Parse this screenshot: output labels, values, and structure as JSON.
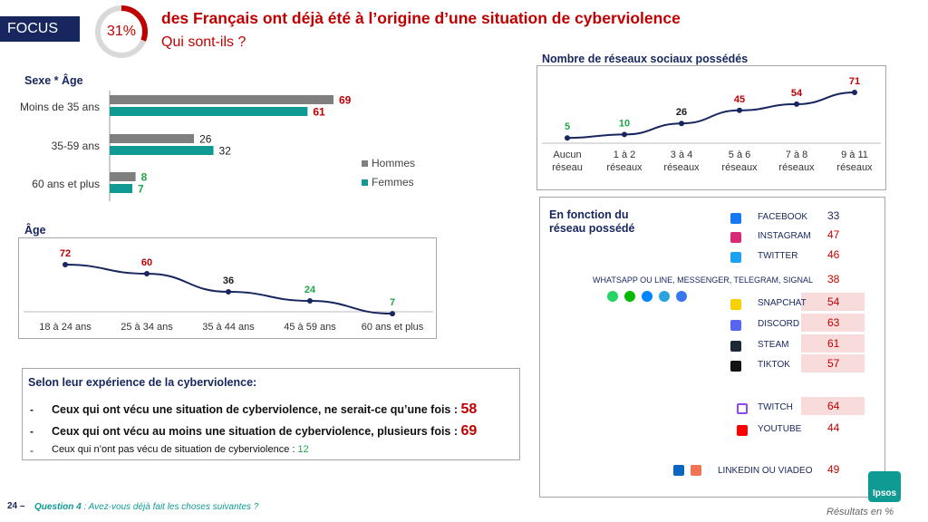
{
  "header": {
    "focus_label": "FOCUS",
    "donut_value": "31%",
    "donut_fraction": 0.31,
    "headline": "des Français ont déjà été à l’origine d’une situation de cyberviolence",
    "subhead": "Qui sont-ils ?"
  },
  "colors": {
    "navy": "#17265e",
    "red": "#c00000",
    "grey_bar": "#7f7f7f",
    "teal_bar": "#0f9a93",
    "green": "#1fa64a"
  },
  "chart_data": [
    {
      "type": "bar",
      "title": "Sexe * Âge",
      "orientation": "horizontal",
      "categories": [
        "Moins de 35 ans",
        "35-59 ans",
        "60 ans et plus"
      ],
      "series": [
        {
          "name": "Hommes",
          "values": [
            69,
            26,
            8
          ]
        },
        {
          "name": "Femmes",
          "values": [
            61,
            32,
            7
          ]
        }
      ],
      "xlim": [
        0,
        75
      ],
      "legend": "bottom-right"
    },
    {
      "type": "line",
      "title": "Âge",
      "categories": [
        "18 à 24 ans",
        "25 à 34 ans",
        "35 à 44 ans",
        "45 à 59 ans",
        "60 ans et plus"
      ],
      "values": [
        72,
        60,
        36,
        24,
        7
      ],
      "ylim": [
        0,
        80
      ]
    },
    {
      "type": "line",
      "title": "Nombre de réseaux sociaux possédés",
      "categories": [
        "Aucun réseau",
        "1 à 2 réseaux",
        "3 à 4 réseaux",
        "5 à 6 réseaux",
        "7 à 8 réseaux",
        "9 à 11 réseaux"
      ],
      "categories_lines": [
        [
          "Aucun",
          "réseau"
        ],
        [
          "1 à 2",
          "réseaux"
        ],
        [
          "3 à 4",
          "réseaux"
        ],
        [
          "5 à 6",
          "réseaux"
        ],
        [
          "7 à 8",
          "réseaux"
        ],
        [
          "9 à 11",
          "réseaux"
        ]
      ],
      "values": [
        5,
        10,
        26,
        45,
        54,
        71
      ],
      "ylim": [
        0,
        80
      ]
    },
    {
      "type": "table",
      "title": "En fonction du réseau possédé",
      "title_lines": [
        "En fonction du",
        "réseau possédé"
      ],
      "rows": [
        {
          "label": "Facebook",
          "value": 33,
          "icon": "facebook-icon",
          "highlight": false
        },
        {
          "label": "Instagram",
          "value": 47,
          "icon": "instagram-icon",
          "highlight": false
        },
        {
          "label": "Twitter",
          "value": 46,
          "icon": "twitter-icon",
          "highlight": false
        },
        {
          "label": "WhatsApp ou Line, Messenger, Telegram, Signal",
          "value": 38,
          "icon": "messaging-apps-icon",
          "highlight": false
        },
        {
          "label": "Snapchat",
          "value": 54,
          "icon": "snapchat-icon",
          "highlight": true
        },
        {
          "label": "Discord",
          "value": 63,
          "icon": "discord-icon",
          "highlight": true
        },
        {
          "label": "Steam",
          "value": 61,
          "icon": "steam-icon",
          "highlight": true
        },
        {
          "label": "Tiktok",
          "value": 57,
          "icon": "tiktok-icon",
          "highlight": true
        },
        {
          "label": "Twitch",
          "value": 64,
          "icon": "twitch-icon",
          "highlight": true
        },
        {
          "label": "Youtube",
          "value": 44,
          "icon": "youtube-icon",
          "highlight": false
        },
        {
          "label": "LinkedIn ou Viadeo",
          "value": 49,
          "icon": "linkedin-viadeo-icon",
          "highlight": false
        }
      ]
    }
  ],
  "experience": {
    "title": "Selon leur expérience de la cyberviolence:",
    "items": [
      {
        "text": "Ceux qui ont vécu une situation de cyberviolence, ne serait-ce qu’une fois : ",
        "value": "58"
      },
      {
        "text": "Ceux qui ont vécu au moins une situation de cyberviolence, plusieurs fois : ",
        "value": "69"
      },
      {
        "text": "Ceux qui n’ont pas vécu de situation de cyberviolence : ",
        "value": "12"
      }
    ]
  },
  "footer": {
    "page_number": "24 –",
    "question_label": "Question 4",
    "question_text": " : Avez-vous déjà fait les choses suivantes ?",
    "results_note": "Résultats en %",
    "logo_text": "Ipsos"
  }
}
